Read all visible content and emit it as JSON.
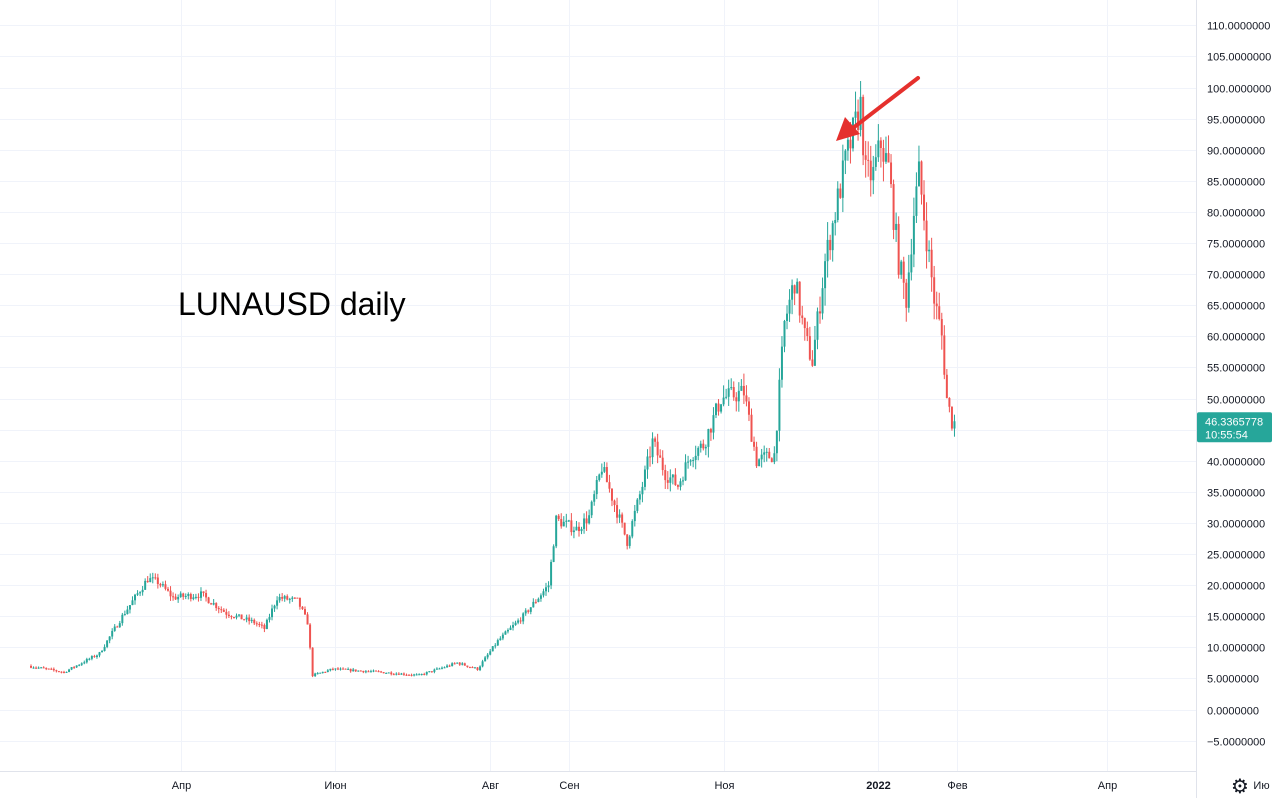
{
  "chart_data": {
    "type": "candlestick",
    "title": "",
    "annotation": "LUNAUSD daily",
    "xlabel": "",
    "ylabel": "",
    "ylim": [
      -10,
      112
    ],
    "xlim": [
      "2021-02-01",
      "2022-05-20"
    ],
    "grid": true,
    "colors": {
      "up": "#26a69a",
      "down": "#ef5350",
      "grid": "#f0f3fa",
      "arrow": "#e5302d",
      "tag": "#26a69a"
    },
    "y_ticks": [
      110,
      105,
      100,
      95,
      90,
      85,
      80,
      75,
      70,
      65,
      60,
      55,
      50,
      45,
      40,
      35,
      30,
      25,
      20,
      15,
      10,
      5,
      0,
      -5
    ],
    "y_tick_labels": [
      "110.0000000",
      "105.0000000",
      "100.0000000",
      "95.0000000",
      "90.0000000",
      "85.0000000",
      "80.0000000",
      "75.0000000",
      "70.0000000",
      "65.0000000",
      "60.0000000",
      "55.0000000",
      "50.0000000",
      "",
      "40.0000000",
      "35.0000000",
      "30.0000000",
      "25.0000000",
      "20.0000000",
      "15.0000000",
      "10.0000000",
      "5.0000000",
      "0.0000000",
      "−5.0000000"
    ],
    "x_ticks": [
      {
        "date": "2021-04-01",
        "label": "Апр",
        "bold": false
      },
      {
        "date": "2021-06-01",
        "label": "Июн",
        "bold": false
      },
      {
        "date": "2021-08-01",
        "label": "Авг",
        "bold": false
      },
      {
        "date": "2021-09-01",
        "label": "Сен",
        "bold": false
      },
      {
        "date": "2021-11-01",
        "label": "Ноя",
        "bold": false
      },
      {
        "date": "2022-01-01",
        "label": "2022",
        "bold": true
      },
      {
        "date": "2022-02-01",
        "label": "Фев",
        "bold": false
      },
      {
        "date": "2022-04-01",
        "label": "Апр",
        "bold": false
      },
      {
        "date": "2022-06-01",
        "label": "Ию",
        "bold": false
      }
    ],
    "last_price": {
      "value": 46.3365778,
      "label": "46.3365778",
      "countdown": "10:55:54"
    },
    "arrow": {
      "from": [
        "2022-01-15",
        88
      ],
      "to": [
        "2022-01-13",
        87
      ]
    },
    "price_path": [
      [
        "2021-02-01",
        7.0
      ],
      [
        "2021-02-15",
        6.0
      ],
      [
        "2021-03-01",
        9.0
      ],
      [
        "2021-03-10",
        15.0
      ],
      [
        "2021-03-20",
        21.0
      ],
      [
        "2021-03-24",
        20.5
      ],
      [
        "2021-03-30",
        18.0
      ],
      [
        "2021-04-10",
        18.5
      ],
      [
        "2021-04-20",
        15.5
      ],
      [
        "2021-05-01",
        14.0
      ],
      [
        "2021-05-05",
        13.0
      ],
      [
        "2021-05-10",
        18.0
      ],
      [
        "2021-05-18",
        17.5
      ],
      [
        "2021-05-22",
        14.0
      ],
      [
        "2021-05-24",
        5.5
      ],
      [
        "2021-06-01",
        6.5
      ],
      [
        "2021-06-20",
        6.0
      ],
      [
        "2021-07-05",
        5.5
      ],
      [
        "2021-07-20",
        7.5
      ],
      [
        "2021-07-28",
        6.5
      ],
      [
        "2021-08-05",
        11.0
      ],
      [
        "2021-08-15",
        15.0
      ],
      [
        "2021-08-25",
        20.0
      ],
      [
        "2021-08-28",
        30.5
      ],
      [
        "2021-09-05",
        29.0
      ],
      [
        "2021-09-10",
        31.0
      ],
      [
        "2021-09-15",
        39.0
      ],
      [
        "2021-09-20",
        33.0
      ],
      [
        "2021-09-25",
        27.0
      ],
      [
        "2021-10-01",
        36.0
      ],
      [
        "2021-10-05",
        43.0
      ],
      [
        "2021-10-10",
        38.0
      ],
      [
        "2021-10-15",
        36.0
      ],
      [
        "2021-10-20",
        41.0
      ],
      [
        "2021-10-25",
        42.5
      ],
      [
        "2021-11-01",
        50.0
      ],
      [
        "2021-11-10",
        51.0
      ],
      [
        "2021-11-15",
        40.0
      ],
      [
        "2021-11-22",
        41.0
      ],
      [
        "2021-11-26",
        62.0
      ],
      [
        "2021-11-30",
        69.0
      ],
      [
        "2021-12-04",
        60.0
      ],
      [
        "2021-12-07",
        56.0
      ],
      [
        "2021-12-12",
        72.0
      ],
      [
        "2021-12-20",
        88.0
      ],
      [
        "2021-12-26",
        97.0
      ],
      [
        "2021-12-28",
        86.0
      ],
      [
        "2021-12-31",
        86.0
      ],
      [
        "2022-01-03",
        91.0
      ],
      [
        "2022-01-06",
        87.0
      ],
      [
        "2022-01-10",
        72.0
      ],
      [
        "2022-01-13",
        66.0
      ],
      [
        "2022-01-16",
        80.0
      ],
      [
        "2022-01-18",
        86.0
      ],
      [
        "2022-01-21",
        76.0
      ],
      [
        "2022-01-24",
        66.0
      ],
      [
        "2022-01-27",
        60.0
      ],
      [
        "2022-01-29",
        50.0
      ],
      [
        "2022-01-31",
        46.34
      ]
    ]
  },
  "toolbar": {
    "settings_icon": "gear-icon",
    "settings_glyph": "⚙"
  }
}
